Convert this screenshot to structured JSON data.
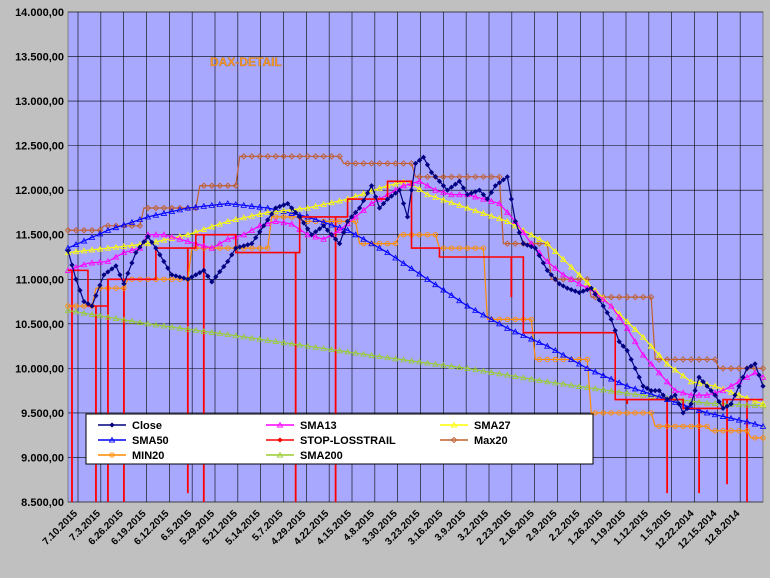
{
  "chart_data": {
    "type": "line",
    "title": "DAX-DETAIL",
    "ylim": [
      8500,
      14000
    ],
    "y_ticks": [
      "14.000,00",
      "13.500,00",
      "13.000,00",
      "12.500,00",
      "12.000,00",
      "11.500,00",
      "11.000,00",
      "10.500,00",
      "10.000,00",
      "9.500,00",
      "9.000,00",
      "8.500,00"
    ],
    "y_tick_values": [
      14000,
      13500,
      13000,
      12500,
      12000,
      11500,
      11000,
      10500,
      10000,
      9500,
      9000,
      8500
    ],
    "x_ticks": [
      "7.10.2015",
      "7.3.2015",
      "6.26.2015",
      "6.19.2015",
      "6.12.2015",
      "6.5.2015",
      "5.29.2015",
      "5.21.2015",
      "5.14.2015",
      "5.7.2015",
      "4.29.2015",
      "4.22.2015",
      "4.15.2015",
      "4.8.2015",
      "3.30.2015",
      "3.23.2015",
      "3.16.2015",
      "3.9.2015",
      "3.2.2015",
      "2.23.2015",
      "2.16.2015",
      "2.9.2015",
      "2.2.2015",
      "1.26.2015",
      "1.19.2015",
      "1.12.2015",
      "1.5.2015",
      "12.22.2014",
      "12.15.2014",
      "12.8.2014"
    ],
    "n_points": 150,
    "series": [
      {
        "name": "Close",
        "color": "#000080",
        "marker": "diamond",
        "knots": [
          [
            0,
            11320
          ],
          [
            2,
            11000
          ],
          [
            4,
            10750
          ],
          [
            6,
            10700
          ],
          [
            9,
            11050
          ],
          [
            12,
            11150
          ],
          [
            14,
            10950
          ],
          [
            17,
            11300
          ],
          [
            20,
            11480
          ],
          [
            22,
            11350
          ],
          [
            26,
            11050
          ],
          [
            30,
            11000
          ],
          [
            34,
            11100
          ],
          [
            36,
            10970
          ],
          [
            40,
            11200
          ],
          [
            42,
            11350
          ],
          [
            46,
            11400
          ],
          [
            49,
            11600
          ],
          [
            52,
            11800
          ],
          [
            55,
            11850
          ],
          [
            58,
            11700
          ],
          [
            61,
            11500
          ],
          [
            64,
            11600
          ],
          [
            68,
            11400
          ],
          [
            70,
            11650
          ],
          [
            73,
            11800
          ],
          [
            76,
            12050
          ],
          [
            78,
            11800
          ],
          [
            80,
            11900
          ],
          [
            83,
            12000
          ],
          [
            85,
            11700
          ],
          [
            87,
            12300
          ],
          [
            89,
            12370
          ],
          [
            91,
            12200
          ],
          [
            93,
            12100
          ],
          [
            95,
            12000
          ],
          [
            98,
            12100
          ],
          [
            100,
            11950
          ],
          [
            103,
            12000
          ],
          [
            105,
            11900
          ],
          [
            107,
            12050
          ],
          [
            110,
            12150
          ],
          [
            112,
            11650
          ],
          [
            114,
            11400
          ],
          [
            117,
            11350
          ],
          [
            120,
            11100
          ],
          [
            123,
            10950
          ],
          [
            125,
            10900
          ],
          [
            128,
            10850
          ],
          [
            131,
            10900
          ],
          [
            134,
            10700
          ],
          [
            136,
            10550
          ],
          [
            138,
            10300
          ],
          [
            140,
            10200
          ],
          [
            142,
            10000
          ],
          [
            144,
            9800
          ],
          [
            146,
            9750
          ],
          [
            148,
            9750
          ],
          [
            150,
            9650
          ],
          [
            152,
            9700
          ],
          [
            154,
            9500
          ],
          [
            156,
            9600
          ],
          [
            158,
            9900
          ],
          [
            160,
            9800
          ],
          [
            162,
            9700
          ],
          [
            164,
            9550
          ],
          [
            166,
            9600
          ],
          [
            168,
            9800
          ],
          [
            170,
            10000
          ],
          [
            172,
            10050
          ],
          [
            174,
            9800
          ]
        ]
      },
      {
        "name": "SMA13",
        "color": "#ff00ff",
        "marker": "triangle",
        "knots": [
          [
            0,
            11100
          ],
          [
            5,
            11180
          ],
          [
            10,
            11200
          ],
          [
            14,
            11300
          ],
          [
            18,
            11350
          ],
          [
            20,
            11500
          ],
          [
            24,
            11500
          ],
          [
            28,
            11450
          ],
          [
            32,
            11400
          ],
          [
            36,
            11350
          ],
          [
            40,
            11450
          ],
          [
            44,
            11500
          ],
          [
            48,
            11600
          ],
          [
            52,
            11650
          ],
          [
            56,
            11620
          ],
          [
            60,
            11500
          ],
          [
            64,
            11450
          ],
          [
            68,
            11550
          ],
          [
            72,
            11700
          ],
          [
            76,
            11850
          ],
          [
            80,
            11950
          ],
          [
            84,
            12050
          ],
          [
            88,
            12100
          ],
          [
            92,
            12000
          ],
          [
            96,
            11950
          ],
          [
            100,
            11950
          ],
          [
            104,
            11900
          ],
          [
            108,
            11850
          ],
          [
            112,
            11650
          ],
          [
            116,
            11400
          ],
          [
            120,
            11200
          ],
          [
            124,
            11050
          ],
          [
            128,
            10950
          ],
          [
            132,
            10850
          ],
          [
            136,
            10700
          ],
          [
            140,
            10450
          ],
          [
            144,
            10150
          ],
          [
            148,
            9950
          ],
          [
            152,
            9750
          ],
          [
            156,
            9700
          ],
          [
            160,
            9700
          ],
          [
            164,
            9750
          ],
          [
            168,
            9850
          ],
          [
            172,
            9950
          ],
          [
            174,
            9900
          ]
        ]
      },
      {
        "name": "SMA27",
        "color": "#ffff00",
        "marker": "triangle",
        "knots": [
          [
            0,
            11300
          ],
          [
            10,
            11350
          ],
          [
            20,
            11400
          ],
          [
            30,
            11500
          ],
          [
            40,
            11650
          ],
          [
            50,
            11750
          ],
          [
            60,
            11800
          ],
          [
            70,
            11900
          ],
          [
            80,
            12050
          ],
          [
            85,
            12100
          ],
          [
            90,
            11950
          ],
          [
            100,
            11800
          ],
          [
            110,
            11650
          ],
          [
            120,
            11400
          ],
          [
            128,
            11050
          ],
          [
            136,
            10700
          ],
          [
            144,
            10350
          ],
          [
            150,
            10050
          ],
          [
            156,
            9850
          ],
          [
            162,
            9800
          ],
          [
            168,
            9700
          ],
          [
            174,
            9600
          ]
        ]
      },
      {
        "name": "SMA50",
        "color": "#0000ff",
        "marker": "triangle",
        "knots": [
          [
            0,
            11350
          ],
          [
            10,
            11550
          ],
          [
            20,
            11700
          ],
          [
            30,
            11800
          ],
          [
            40,
            11850
          ],
          [
            50,
            11800
          ],
          [
            60,
            11700
          ],
          [
            70,
            11550
          ],
          [
            80,
            11300
          ],
          [
            90,
            11000
          ],
          [
            100,
            10700
          ],
          [
            110,
            10450
          ],
          [
            120,
            10250
          ],
          [
            130,
            10000
          ],
          [
            140,
            9800
          ],
          [
            150,
            9650
          ],
          [
            160,
            9500
          ],
          [
            170,
            9400
          ],
          [
            174,
            9350
          ]
        ]
      },
      {
        "name": "STOP-LOSSTRAIL",
        "color": "#ff0000",
        "marker": "step",
        "knots": [
          [
            0,
            11100
          ],
          [
            3,
            11100
          ],
          [
            4,
            10700
          ],
          [
            8,
            10700
          ],
          [
            9,
            11000
          ],
          [
            20,
            11000
          ],
          [
            21,
            11350
          ],
          [
            30,
            11350
          ],
          [
            31,
            11500
          ],
          [
            40,
            11500
          ],
          [
            41,
            11300
          ],
          [
            56,
            11300
          ],
          [
            57,
            11700
          ],
          [
            68,
            11700
          ],
          [
            69,
            11900
          ],
          [
            78,
            11900
          ],
          [
            79,
            12100
          ],
          [
            84,
            12100
          ],
          [
            85,
            11350
          ],
          [
            91,
            11350
          ],
          [
            92,
            11250
          ],
          [
            112,
            11250
          ],
          [
            113,
            10400
          ],
          [
            135,
            10400
          ],
          [
            136,
            9650
          ],
          [
            152,
            9650
          ],
          [
            153,
            9550
          ],
          [
            162,
            9550
          ],
          [
            163,
            9650
          ],
          [
            174,
            9650
          ]
        ]
      },
      {
        "name": "Max20",
        "color": "#c06030",
        "marker": "diamond-open",
        "knots": [
          [
            0,
            11550
          ],
          [
            8,
            11550
          ],
          [
            9,
            11600
          ],
          [
            18,
            11600
          ],
          [
            19,
            11800
          ],
          [
            32,
            11800
          ],
          [
            33,
            12050
          ],
          [
            42,
            12050
          ],
          [
            43,
            12380
          ],
          [
            68,
            12380
          ],
          [
            69,
            12300
          ],
          [
            86,
            12300
          ],
          [
            87,
            12150
          ],
          [
            108,
            12150
          ],
          [
            109,
            11400
          ],
          [
            120,
            11400
          ],
          [
            121,
            11000
          ],
          [
            130,
            11000
          ],
          [
            131,
            10800
          ],
          [
            146,
            10800
          ],
          [
            147,
            10100
          ],
          [
            162,
            10100
          ],
          [
            163,
            10000
          ],
          [
            174,
            10000
          ]
        ]
      },
      {
        "name": "MIN20",
        "color": "#ff8c00",
        "marker": "circle-open",
        "knots": [
          [
            0,
            10700
          ],
          [
            6,
            10700
          ],
          [
            7,
            10900
          ],
          [
            14,
            10900
          ],
          [
            15,
            11000
          ],
          [
            30,
            11000
          ],
          [
            31,
            11350
          ],
          [
            50,
            11350
          ],
          [
            51,
            11700
          ],
          [
            58,
            11700
          ],
          [
            59,
            11650
          ],
          [
            72,
            11650
          ],
          [
            73,
            11400
          ],
          [
            82,
            11400
          ],
          [
            83,
            11500
          ],
          [
            92,
            11500
          ],
          [
            93,
            11350
          ],
          [
            104,
            11350
          ],
          [
            105,
            10550
          ],
          [
            116,
            10550
          ],
          [
            117,
            10100
          ],
          [
            130,
            10100
          ],
          [
            131,
            9500
          ],
          [
            146,
            9500
          ],
          [
            147,
            9350
          ],
          [
            160,
            9350
          ],
          [
            161,
            9300
          ],
          [
            170,
            9300
          ],
          [
            171,
            9220
          ],
          [
            174,
            9220
          ]
        ]
      },
      {
        "name": "SMA200",
        "color": "#99cc33",
        "marker": "triangle",
        "knots": [
          [
            0,
            10650
          ],
          [
            20,
            10500
          ],
          [
            40,
            10380
          ],
          [
            60,
            10250
          ],
          [
            80,
            10120
          ],
          [
            100,
            10000
          ],
          [
            120,
            9850
          ],
          [
            140,
            9720
          ],
          [
            160,
            9610
          ],
          [
            174,
            9580
          ]
        ]
      }
    ],
    "spikes": [
      {
        "index": 1,
        "low": 8500
      },
      {
        "index": 7,
        "low": 8500
      },
      {
        "index": 10,
        "low": 8500
      },
      {
        "index": 14,
        "low": 8500
      },
      {
        "index": 30,
        "low": 8600
      },
      {
        "index": 34,
        "low": 8500
      },
      {
        "index": 57,
        "low": 8500
      },
      {
        "index": 67,
        "low": 8500
      },
      {
        "index": 111,
        "low": 10800
      },
      {
        "index": 140,
        "low": 9600
      },
      {
        "index": 150,
        "low": 8600
      },
      {
        "index": 158,
        "low": 8600
      },
      {
        "index": 165,
        "low": 8700
      },
      {
        "index": 170,
        "low": 8500
      }
    ],
    "legend_position": "bottom-left",
    "legend": [
      "Close",
      "SMA13",
      "SMA27",
      "SMA50",
      "STOP-LOSSTRAIL",
      "Max20",
      "MIN20",
      "SMA200"
    ]
  }
}
